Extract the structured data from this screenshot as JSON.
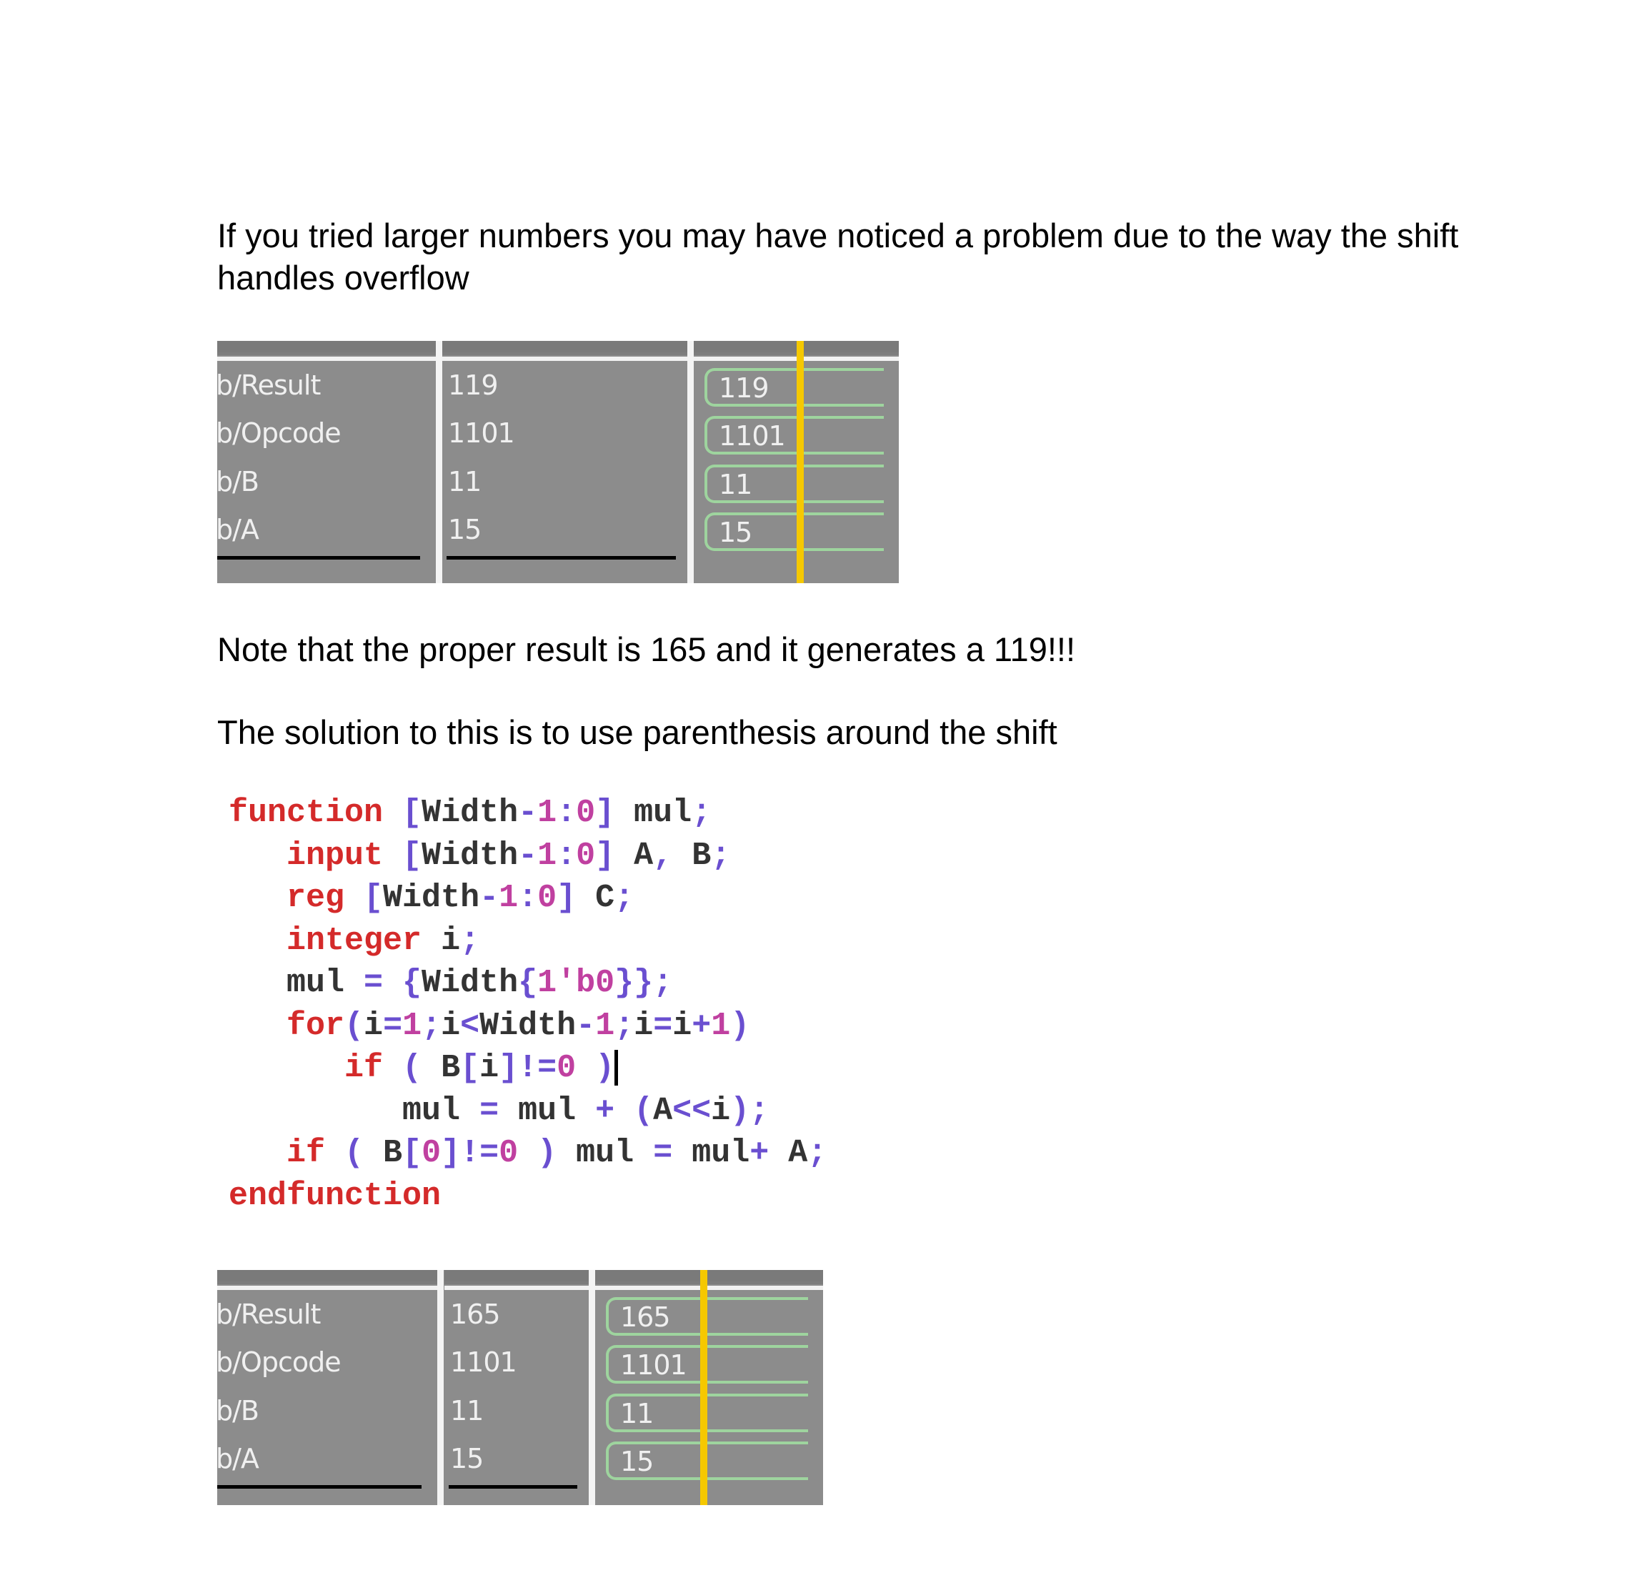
{
  "paragraphs": {
    "intro_line1": "If you tried larger numbers you may have noticed a problem due to the way the shift",
    "intro_line2": "handles overflow",
    "note": "Note that the proper result is 165 and it generates a 119!!!",
    "solution": "The solution to this is to use parenthesis around the shift"
  },
  "waveform_before": {
    "signals": [
      {
        "name": "b/Result",
        "value": "119"
      },
      {
        "name": "b/Opcode",
        "value": "1101"
      },
      {
        "name": "b/B",
        "value": "11"
      },
      {
        "name": "b/A",
        "value": "15"
      }
    ]
  },
  "waveform_after": {
    "signals": [
      {
        "name": "b/Result",
        "value": "165"
      },
      {
        "name": "b/Opcode",
        "value": "1101"
      },
      {
        "name": "b/B",
        "value": "11"
      },
      {
        "name": "b/A",
        "value": "15"
      }
    ]
  },
  "colors": {
    "keyword": "#d42a2a",
    "punct": "#6a4fd0",
    "number": "#c040a0",
    "wave_bg": "#8c8c8c",
    "bus": "#9ed49e",
    "cursor": "#f5c800"
  },
  "code": [
    [
      [
        "function ",
        "k"
      ],
      [
        "[",
        "p"
      ],
      [
        "Width",
        "t"
      ],
      [
        "-",
        "p"
      ],
      [
        "1",
        "n"
      ],
      [
        ":",
        "p"
      ],
      [
        "0",
        "n"
      ],
      [
        "]",
        "p"
      ],
      [
        " mul",
        "t"
      ],
      [
        ";",
        "p"
      ]
    ],
    [
      [
        "   input ",
        "k"
      ],
      [
        "[",
        "p"
      ],
      [
        "Width",
        "t"
      ],
      [
        "-",
        "p"
      ],
      [
        "1",
        "n"
      ],
      [
        ":",
        "p"
      ],
      [
        "0",
        "n"
      ],
      [
        "]",
        "p"
      ],
      [
        " A",
        "t"
      ],
      [
        ",",
        "p"
      ],
      [
        " B",
        "t"
      ],
      [
        ";",
        "p"
      ]
    ],
    [
      [
        "   reg ",
        "k"
      ],
      [
        "[",
        "p"
      ],
      [
        "Width",
        "t"
      ],
      [
        "-",
        "p"
      ],
      [
        "1",
        "n"
      ],
      [
        ":",
        "p"
      ],
      [
        "0",
        "n"
      ],
      [
        "]",
        "p"
      ],
      [
        " C",
        "t"
      ],
      [
        ";",
        "p"
      ]
    ],
    [
      [
        "   integer ",
        "k"
      ],
      [
        "i",
        "t"
      ],
      [
        ";",
        "p"
      ]
    ],
    [
      [
        "   mul ",
        "t"
      ],
      [
        "= {",
        "p"
      ],
      [
        "Width",
        "t"
      ],
      [
        "{",
        "p"
      ],
      [
        "1'b0",
        "n"
      ],
      [
        "}};",
        "p"
      ]
    ],
    [
      [
        "   for",
        "k"
      ],
      [
        "(",
        "p"
      ],
      [
        "i",
        "t"
      ],
      [
        "=",
        "p"
      ],
      [
        "1",
        "n"
      ],
      [
        ";",
        "p"
      ],
      [
        "i",
        "t"
      ],
      [
        "<",
        "p"
      ],
      [
        "Width",
        "t"
      ],
      [
        "-",
        "p"
      ],
      [
        "1",
        "n"
      ],
      [
        ";",
        "p"
      ],
      [
        "i",
        "t"
      ],
      [
        "=",
        "p"
      ],
      [
        "i",
        "t"
      ],
      [
        "+",
        "p"
      ],
      [
        "1",
        "n"
      ],
      [
        ")",
        "p"
      ]
    ],
    [
      [
        "      if ",
        "k"
      ],
      [
        "( ",
        "p"
      ],
      [
        "B",
        "t"
      ],
      [
        "[",
        "p"
      ],
      [
        "i",
        "t"
      ],
      [
        "]",
        "p"
      ],
      [
        "!=",
        "p"
      ],
      [
        "0",
        "n"
      ],
      [
        " )",
        "p"
      ]
    ],
    [
      [
        "         mul ",
        "t"
      ],
      [
        "= ",
        "p"
      ],
      [
        "mul ",
        "t"
      ],
      [
        "+ (",
        "p"
      ],
      [
        "A",
        "t"
      ],
      [
        "<<",
        "p"
      ],
      [
        "i",
        "t"
      ],
      [
        ");",
        "p"
      ]
    ],
    [
      [
        "   if ",
        "k"
      ],
      [
        "( ",
        "p"
      ],
      [
        "B",
        "t"
      ],
      [
        "[",
        "p"
      ],
      [
        "0",
        "n"
      ],
      [
        "]",
        "p"
      ],
      [
        "!=",
        "p"
      ],
      [
        "0",
        "n"
      ],
      [
        " ) ",
        "p"
      ],
      [
        "mul ",
        "t"
      ],
      [
        "= ",
        "p"
      ],
      [
        "mul",
        "t"
      ],
      [
        "+ ",
        "p"
      ],
      [
        "A",
        "t"
      ],
      [
        ";",
        "p"
      ]
    ],
    [
      [
        "endfunction",
        "k"
      ]
    ]
  ]
}
